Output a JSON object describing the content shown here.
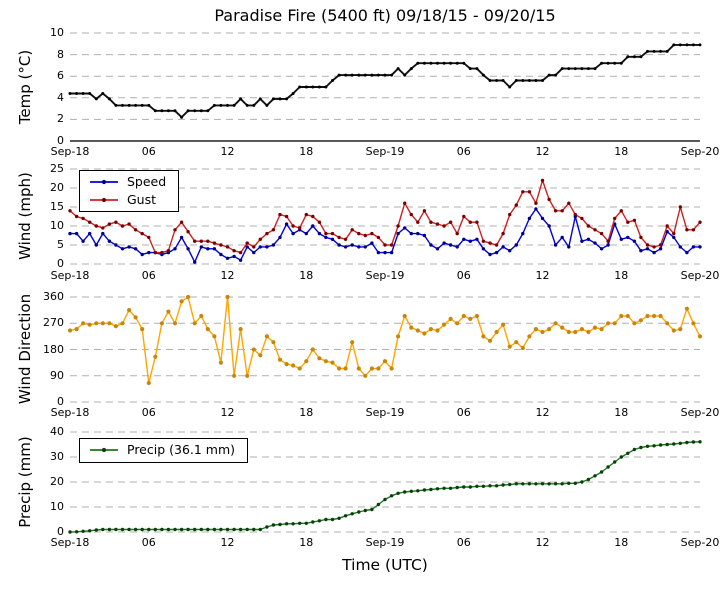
{
  "title": "Paradise Fire (5400 ft) 09/18/15 - 09/20/15",
  "xlabel": "Time (UTC)",
  "x_ticks": [
    "Sep-18",
    "06",
    "12",
    "18",
    "Sep-19",
    "06",
    "12",
    "18",
    "Sep-20"
  ],
  "x_range_hours": [
    0,
    48
  ],
  "time_step_hours": 0.5,
  "grid_color": "#b0b0b0",
  "chart_data": [
    {
      "type": "line",
      "ylabel": "Temp (°C)",
      "ylim": [
        0,
        10
      ],
      "yticks": [
        0,
        2,
        4,
        6,
        8,
        10
      ],
      "baseline_solid": true,
      "series": [
        {
          "id": "temp",
          "name": "Temp",
          "line_color": "#111111",
          "marker_color": "#000000",
          "values": [
            4.4,
            4.4,
            4.4,
            4.4,
            3.9,
            4.4,
            3.9,
            3.3,
            3.3,
            3.3,
            3.3,
            3.3,
            3.3,
            2.8,
            2.8,
            2.8,
            2.8,
            2.2,
            2.8,
            2.8,
            2.8,
            2.8,
            3.3,
            3.3,
            3.3,
            3.3,
            3.9,
            3.3,
            3.3,
            3.9,
            3.3,
            3.9,
            3.9,
            3.9,
            4.4,
            5.0,
            5.0,
            5.0,
            5.0,
            5.0,
            5.6,
            6.1,
            6.1,
            6.1,
            6.1,
            6.1,
            6.1,
            6.1,
            6.1,
            6.1,
            6.7,
            6.1,
            6.7,
            7.2,
            7.2,
            7.2,
            7.2,
            7.2,
            7.2,
            7.2,
            7.2,
            6.7,
            6.7,
            6.1,
            5.6,
            5.6,
            5.6,
            5.0,
            5.6,
            5.6,
            5.6,
            5.6,
            5.6,
            6.1,
            6.1,
            6.7,
            6.7,
            6.7,
            6.7,
            6.7,
            6.7,
            7.2,
            7.2,
            7.2,
            7.2,
            7.8,
            7.8,
            7.8,
            8.3,
            8.3,
            8.3,
            8.3,
            8.9,
            8.9,
            8.9,
            8.9,
            8.9
          ]
        }
      ]
    },
    {
      "type": "line",
      "ylabel": "Wind (mph)",
      "ylim": [
        0,
        25
      ],
      "yticks": [
        0,
        5,
        10,
        15,
        20,
        25
      ],
      "baseline_solid": false,
      "legend_labels": [
        "Speed",
        "Gust"
      ],
      "series": [
        {
          "id": "speed",
          "name": "Speed",
          "line_color": "#0000dd",
          "marker_color": "#00008b",
          "values": [
            8,
            8,
            6,
            8,
            5,
            8,
            6,
            5,
            4,
            4.5,
            4,
            2.5,
            3,
            3,
            2.5,
            3,
            4,
            7,
            4,
            0.5,
            4.5,
            4,
            4,
            2.5,
            1.5,
            2,
            1,
            4.5,
            3,
            4.5,
            4.5,
            5,
            7,
            10.5,
            8,
            9,
            8,
            10,
            8,
            7,
            6.5,
            5,
            4.5,
            5,
            4.5,
            4.5,
            5.5,
            3,
            3,
            3,
            8,
            9.5,
            8,
            8,
            7.5,
            5,
            4,
            5.5,
            5,
            4.5,
            6.5,
            6,
            6.5,
            4,
            2.5,
            3,
            4.5,
            3.5,
            5,
            8,
            12,
            14.5,
            12,
            10,
            5,
            7,
            4.5,
            12.5,
            6,
            6.5,
            5.5,
            4,
            5,
            10.5,
            6.5,
            7,
            6,
            3.5,
            4,
            3,
            4,
            8.5,
            7,
            4.5,
            3,
            4.5,
            4.5
          ]
        },
        {
          "id": "gust",
          "name": "Gust",
          "line_color": "#cc2222",
          "marker_color": "#7a0000",
          "values": [
            14,
            12.5,
            12,
            11,
            10,
            9.5,
            10.5,
            11,
            10,
            10.5,
            9,
            8,
            7,
            3,
            3,
            3.5,
            9,
            11,
            8.5,
            6,
            6,
            6,
            5.5,
            5,
            4.5,
            3.5,
            3,
            5.5,
            4.5,
            6.5,
            8,
            9,
            13,
            12.5,
            10,
            9.5,
            13,
            12.5,
            11,
            8,
            8,
            7,
            6.5,
            9,
            8,
            7.5,
            8,
            7,
            5,
            5,
            10,
            16,
            13,
            11,
            14,
            11,
            10.5,
            10,
            11,
            8,
            12.5,
            11,
            11,
            6,
            5.5,
            5,
            8,
            13,
            15.5,
            19,
            19,
            16,
            22,
            17,
            14,
            14,
            16,
            13,
            12,
            10,
            9,
            8,
            6,
            12,
            14,
            11,
            11.5,
            7,
            5,
            4.5,
            5,
            10,
            8,
            15,
            9,
            9,
            11
          ]
        }
      ]
    },
    {
      "type": "line",
      "ylabel": "Wind Direction",
      "ylim": [
        0,
        360
      ],
      "yticks": [
        0,
        90,
        180,
        270,
        360
      ],
      "baseline_solid": false,
      "series": [
        {
          "id": "direction",
          "name": "Direction",
          "line_color": "#ffa500",
          "marker_color": "#c8860a",
          "values": [
            245,
            250,
            270,
            265,
            270,
            270,
            270,
            260,
            270,
            315,
            290,
            250,
            65,
            155,
            270,
            310,
            270,
            345,
            360,
            270,
            295,
            250,
            225,
            135,
            360,
            90,
            250,
            90,
            180,
            160,
            225,
            205,
            145,
            130,
            125,
            115,
            140,
            180,
            150,
            140,
            135,
            115,
            115,
            205,
            115,
            90,
            115,
            115,
            140,
            115,
            225,
            295,
            255,
            245,
            235,
            250,
            245,
            265,
            285,
            270,
            295,
            285,
            295,
            225,
            210,
            240,
            265,
            190,
            205,
            185,
            225,
            250,
            240,
            250,
            270,
            255,
            240,
            240,
            250,
            240,
            255,
            250,
            270,
            270,
            295,
            295,
            270,
            280,
            295,
            295,
            295,
            270,
            245,
            250,
            320,
            270,
            225
          ]
        }
      ]
    },
    {
      "type": "line",
      "ylabel": "Precip (mm)",
      "ylim": [
        0,
        40
      ],
      "yticks": [
        0,
        10,
        20,
        30,
        40
      ],
      "baseline_solid": false,
      "legend_labels": [
        "Precip (36.1 mm)"
      ],
      "total_mm": 36.1,
      "series": [
        {
          "id": "precip",
          "name": "Precip (36.1 mm)",
          "line_color": "#1a7a1a",
          "marker_color": "#0d3d0d",
          "values": [
            0,
            0.1,
            0.3,
            0.5,
            0.8,
            1,
            1,
            1,
            1,
            1,
            1,
            1,
            1,
            1,
            1,
            1,
            1,
            1,
            1,
            1,
            1,
            1,
            1,
            1,
            1,
            1,
            1,
            1,
            1,
            1,
            2.0,
            2.8,
            3.0,
            3.3,
            3.3,
            3.5,
            3.5,
            4.0,
            4.5,
            5.0,
            5.0,
            5.5,
            6.5,
            7.3,
            8.0,
            8.6,
            9.0,
            11.0,
            13.0,
            14.5,
            15.5,
            16.0,
            16.3,
            16.5,
            16.8,
            17.0,
            17.3,
            17.5,
            17.5,
            17.8,
            18.0,
            18.0,
            18.3,
            18.3,
            18.5,
            18.5,
            18.8,
            19.0,
            19.3,
            19.3,
            19.3,
            19.3,
            19.3,
            19.3,
            19.3,
            19.3,
            19.5,
            19.5,
            20.0,
            21.0,
            22.5,
            24.0,
            26.0,
            28.0,
            30.0,
            31.5,
            33.0,
            33.8,
            34.3,
            34.5,
            34.8,
            35.0,
            35.2,
            35.5,
            35.8,
            36.0,
            36.1
          ]
        }
      ]
    }
  ]
}
